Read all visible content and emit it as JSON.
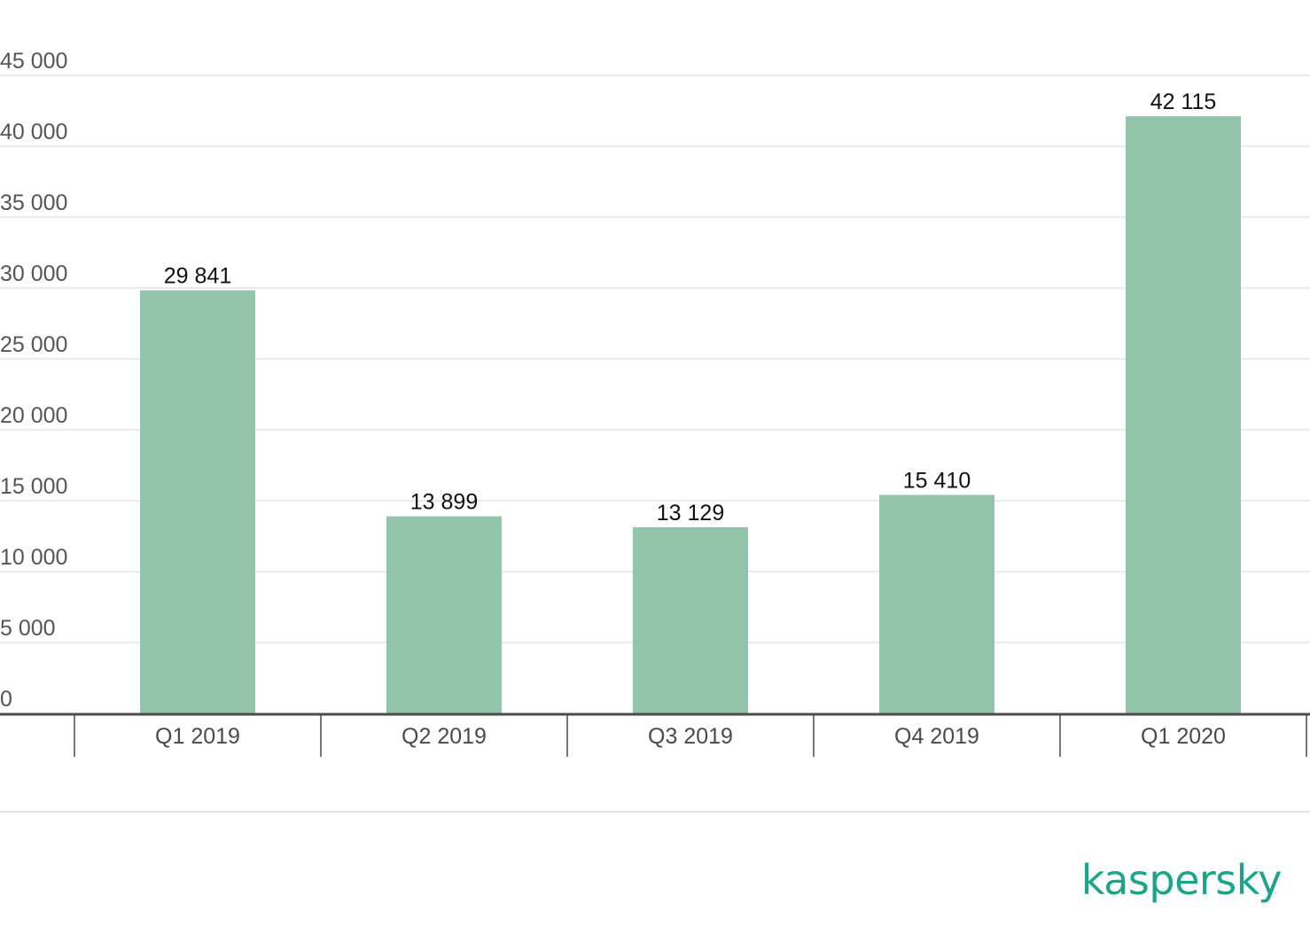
{
  "chart_data": {
    "type": "bar",
    "categories": [
      "Q1 2019",
      "Q2 2019",
      "Q3 2019",
      "Q4 2019",
      "Q1 2020"
    ],
    "values": [
      29841,
      13899,
      13129,
      15410,
      42115
    ],
    "data_labels": [
      "29 841",
      "13 899",
      "13 129",
      "15 410",
      "42 115"
    ],
    "yticks": [
      0,
      5000,
      10000,
      15000,
      20000,
      25000,
      30000,
      35000,
      40000,
      45000
    ],
    "ytick_labels": [
      "0",
      "5 000",
      "10 000",
      "15 000",
      "20 000",
      "25 000",
      "30 000",
      "35 000",
      "40 000",
      "45 000"
    ],
    "ylim": [
      0,
      45000
    ],
    "grid": true,
    "bar_color": "#91c4a8"
  },
  "brand": {
    "logo_text": "kaspersky",
    "color": "#1aa58a"
  }
}
